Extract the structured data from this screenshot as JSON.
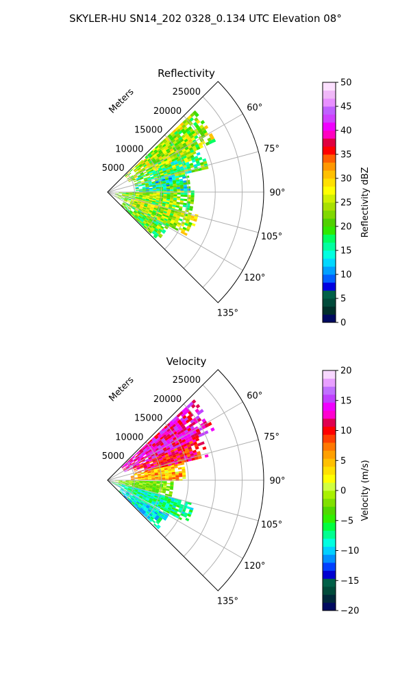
{
  "figure": {
    "suptitle": "SKYLER-HU  SN14_202  0328_0.134 UTC Elevation 08°"
  },
  "chart_data": [
    {
      "type": "heatmap",
      "subtype": "polar-sector",
      "title": "Reflectivity",
      "radial_label": "Meters",
      "radial_ticks": [
        5000,
        10000,
        15000,
        20000,
        25000
      ],
      "radial_tick_labels": [
        "5000",
        "10000",
        "15000",
        "20000",
        "25000"
      ],
      "rmax": 29000,
      "theta_range_deg": [
        45,
        135
      ],
      "angle_ticks": [
        60,
        75,
        90,
        105,
        120,
        135
      ],
      "angle_tick_labels": [
        "60°",
        "75°",
        "90°",
        "105°",
        "120°",
        "135°"
      ],
      "grid": true,
      "colorbar": {
        "label": "Reflectivity dBZ",
        "vmin": 0,
        "vmax": 50,
        "ticks": [
          0,
          5,
          10,
          15,
          20,
          25,
          30,
          35,
          40,
          45,
          50
        ],
        "tick_labels": [
          "0",
          "5",
          "10",
          "15",
          "20",
          "25",
          "30",
          "35",
          "40",
          "45",
          "50"
        ],
        "colors": [
          "#000a60",
          "#002f2a",
          "#004a3a",
          "#006048",
          "#0000e0",
          "#0060ff",
          "#00a0ff",
          "#00d8ff",
          "#00ffe0",
          "#00ffa0",
          "#00ff60",
          "#30e800",
          "#50d000",
          "#80d800",
          "#a8e000",
          "#d0f000",
          "#ffff00",
          "#ffe000",
          "#ffc000",
          "#ff9800",
          "#ff6000",
          "#ff0000",
          "#e00040",
          "#ff00c0",
          "#f000ff",
          "#d040ff",
          "#c060ff",
          "#e890ff",
          "#f0b8f8",
          "#fce0ff"
        ]
      },
      "bands": [
        {
          "theta": [
            47,
            64
          ],
          "r": [
            0.15,
            0.75
          ],
          "value": 24,
          "noise": 7
        },
        {
          "theta": [
            65,
            76
          ],
          "r": [
            0.18,
            0.65
          ],
          "value": 20,
          "noise": 8
        },
        {
          "theta": [
            77,
            88
          ],
          "r": [
            0.18,
            0.52
          ],
          "value": 17,
          "noise": 8
        },
        {
          "theta": [
            89,
            103
          ],
          "r": [
            0.05,
            0.55
          ],
          "value": 22,
          "noise": 7
        },
        {
          "theta": [
            104,
            118
          ],
          "r": [
            0.05,
            0.6
          ],
          "value": 24,
          "noise": 7
        },
        {
          "theta": [
            119,
            133
          ],
          "r": [
            0.12,
            0.45
          ],
          "value": 21,
          "noise": 6
        }
      ]
    },
    {
      "type": "heatmap",
      "subtype": "polar-sector",
      "title": "Velocity",
      "radial_label": "Meters",
      "radial_ticks": [
        5000,
        10000,
        15000,
        20000,
        25000
      ],
      "radial_tick_labels": [
        "5000",
        "10000",
        "15000",
        "20000",
        "25000"
      ],
      "rmax": 29000,
      "theta_range_deg": [
        45,
        135
      ],
      "angle_ticks": [
        60,
        75,
        90,
        105,
        120,
        135
      ],
      "angle_tick_labels": [
        "60°",
        "75°",
        "90°",
        "105°",
        "120°",
        "135°"
      ],
      "grid": true,
      "colorbar": {
        "label": "Velocity (m/s)",
        "vmin": -20,
        "vmax": 20,
        "ticks": [
          -20,
          -15,
          -10,
          -5,
          0,
          5,
          10,
          15,
          20
        ],
        "tick_labels": [
          "−20",
          "−15",
          "−10",
          "−5",
          "0",
          "5",
          "10",
          "15",
          "20"
        ],
        "colors": [
          "#000a60",
          "#00283a",
          "#004a3a",
          "#006048",
          "#0000d0",
          "#0040ff",
          "#0090ff",
          "#00d0ff",
          "#00ffe0",
          "#00ff90",
          "#00ff40",
          "#30f000",
          "#50d800",
          "#80e000",
          "#a8f000",
          "#d0ff40",
          "#ffff00",
          "#ffe000",
          "#ffc000",
          "#ffa000",
          "#ff7800",
          "#ff4000",
          "#ff0000",
          "#e00050",
          "#ff00d0",
          "#f000ff",
          "#c040ff",
          "#c070ff",
          "#e8a0ff",
          "#f8d8ff"
        ]
      },
      "bands": [
        {
          "theta": [
            47,
            64
          ],
          "r": [
            0.12,
            0.75
          ],
          "value": 13,
          "noise": 3
        },
        {
          "theta": [
            65,
            76
          ],
          "r": [
            0.18,
            0.66
          ],
          "value": 10,
          "noise": 3
        },
        {
          "theta": [
            77,
            90
          ],
          "r": [
            0.15,
            0.5
          ],
          "value": 5,
          "noise": 4
        },
        {
          "theta": [
            91,
            104
          ],
          "r": [
            0.05,
            0.42
          ],
          "value": -2,
          "noise": 3
        },
        {
          "theta": [
            105,
            118
          ],
          "r": [
            0.03,
            0.56
          ],
          "value": -7,
          "noise": 3
        },
        {
          "theta": [
            119,
            133
          ],
          "r": [
            0.1,
            0.45
          ],
          "value": -9,
          "noise": 3
        }
      ]
    }
  ]
}
